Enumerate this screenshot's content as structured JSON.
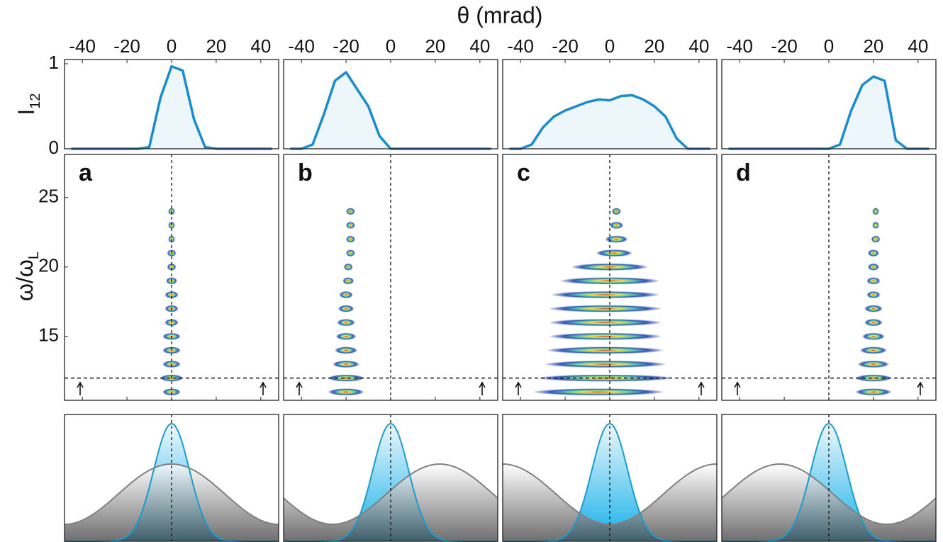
{
  "xlabel": "θ (mrad)",
  "chart_data": [
    {
      "label": "a",
      "xlim": [
        -48,
        48
      ],
      "xticks": [
        -40,
        -20,
        0,
        20,
        40
      ],
      "profile": {
        "type": "line",
        "color": "#1a8ccc",
        "ylabel": {
          "text": "I",
          "sub": "12"
        },
        "ylim": [
          0,
          1.05
        ],
        "yticks": [
          0,
          1
        ],
        "x": [
          -45,
          -40,
          -35,
          -30,
          -25,
          -20,
          -15,
          -10,
          -5,
          0,
          5,
          10,
          15,
          20,
          25,
          30,
          35,
          40,
          45
        ],
        "values": [
          0,
          0,
          0,
          0,
          0,
          0,
          0,
          0.02,
          0.6,
          0.97,
          0.92,
          0.35,
          0.02,
          0,
          0,
          0,
          0,
          0,
          0
        ]
      },
      "spectrum": {
        "type": "harmonics",
        "ylabel": {
          "text": "ω/ω",
          "sub": "L"
        },
        "ylim": [
          10.4,
          28.1
        ],
        "yticks": [
          15,
          20,
          25
        ],
        "cutoff": 12,
        "axis_line": 0,
        "orders": [
          11,
          12,
          13,
          14,
          15,
          16,
          17,
          18,
          19,
          20,
          21,
          22,
          23,
          24
        ],
        "centers": [
          0,
          0,
          0,
          0,
          0,
          0,
          0,
          0,
          0,
          0,
          0,
          0,
          0,
          0
        ],
        "half_widths": [
          4,
          5,
          4,
          4,
          4,
          3,
          3,
          3,
          2.5,
          2,
          2,
          1.5,
          1.5,
          1.5
        ]
      }
    },
    {
      "label": "b",
      "xlim": [
        -48,
        48
      ],
      "xticks": [
        -40,
        -20,
        0,
        20,
        40
      ],
      "profile": {
        "type": "line",
        "color": "#1a8ccc",
        "ylim": [
          0,
          1.05
        ],
        "x": [
          -45,
          -40,
          -35,
          -30,
          -25,
          -20,
          -15,
          -10,
          -5,
          0,
          5,
          10,
          15,
          20,
          25,
          30,
          35,
          40,
          45
        ],
        "values": [
          0,
          0,
          0.05,
          0.4,
          0.8,
          0.9,
          0.7,
          0.5,
          0.15,
          0,
          0,
          0,
          0,
          0,
          0,
          0,
          0,
          0,
          0
        ]
      },
      "spectrum": {
        "type": "harmonics",
        "ylim": [
          10.4,
          28.1
        ],
        "cutoff": 12,
        "axis_line": 0,
        "orders": [
          11,
          12,
          13,
          14,
          15,
          16,
          17,
          18,
          19,
          20,
          21,
          22,
          23,
          24
        ],
        "centers": [
          -20,
          -20,
          -20,
          -20,
          -20,
          -20,
          -20,
          -20,
          -19,
          -19,
          -18,
          -18,
          -18,
          -18
        ],
        "half_widths": [
          8,
          8,
          6,
          5,
          4.5,
          4,
          3.5,
          3,
          2.5,
          2,
          2,
          2,
          2,
          2
        ]
      }
    },
    {
      "label": "c",
      "xlim": [
        -48,
        48
      ],
      "xticks": [
        -40,
        -20,
        0,
        20,
        40
      ],
      "profile": {
        "type": "line",
        "color": "#1a8ccc",
        "ylim": [
          0,
          1.05
        ],
        "x": [
          -45,
          -40,
          -35,
          -30,
          -25,
          -20,
          -15,
          -10,
          -5,
          0,
          5,
          10,
          15,
          20,
          25,
          30,
          35,
          40,
          45
        ],
        "values": [
          0,
          0,
          0.05,
          0.25,
          0.38,
          0.45,
          0.5,
          0.55,
          0.58,
          0.57,
          0.62,
          0.63,
          0.58,
          0.5,
          0.38,
          0.12,
          0,
          0,
          0
        ]
      },
      "spectrum": {
        "type": "harmonics",
        "ylim": [
          10.4,
          28.1
        ],
        "cutoff": 12,
        "axis_line": 0,
        "orders": [
          11,
          12,
          13,
          14,
          15,
          16,
          17,
          18,
          19,
          20,
          21,
          22,
          23,
          24
        ],
        "centers": [
          -5,
          -2,
          -2,
          -2,
          -2,
          -2,
          -2,
          -2,
          0,
          0,
          2,
          3,
          3,
          3
        ],
        "half_widths": [
          29,
          30,
          27,
          26,
          25,
          25,
          25,
          24,
          22,
          17,
          8,
          5,
          3,
          2
        ]
      }
    },
    {
      "label": "d",
      "xlim": [
        -48,
        48
      ],
      "xticks": [
        -40,
        -20,
        0,
        20,
        40
      ],
      "profile": {
        "type": "line",
        "color": "#1a8ccc",
        "ylim": [
          0,
          1.05
        ],
        "x": [
          -45,
          -40,
          -35,
          -30,
          -25,
          -20,
          -15,
          -10,
          -5,
          0,
          5,
          10,
          15,
          20,
          25,
          30,
          35,
          40,
          45
        ],
        "values": [
          0,
          0,
          0,
          0,
          0,
          0,
          0,
          0,
          0,
          0,
          0.05,
          0.45,
          0.75,
          0.85,
          0.8,
          0.1,
          0,
          0,
          0
        ]
      },
      "spectrum": {
        "type": "harmonics",
        "ylim": [
          10.4,
          28.1
        ],
        "cutoff": 12,
        "axis_line": 0,
        "orders": [
          11,
          12,
          13,
          14,
          15,
          16,
          17,
          18,
          19,
          20,
          21,
          22,
          23,
          24
        ],
        "centers": [
          20,
          20,
          20,
          20,
          20,
          20,
          20,
          20,
          20,
          20,
          20,
          21,
          21,
          21
        ],
        "half_widths": [
          8,
          8,
          7,
          6,
          5,
          4,
          4,
          3,
          3,
          2.5,
          2.5,
          2,
          1.5,
          1.5
        ]
      }
    }
  ]
}
